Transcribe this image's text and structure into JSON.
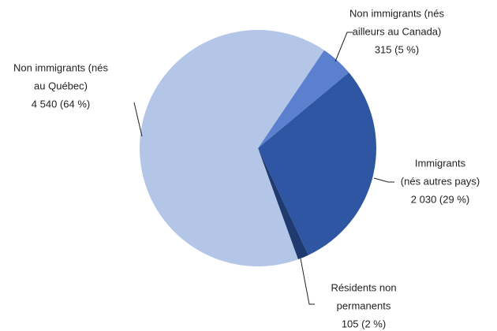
{
  "chart_data": {
    "type": "pie",
    "categories": [
      [
        "Non immigrants (nés",
        "ailleurs au Canada)"
      ],
      [
        "Immigrants",
        "(nés autres pays)"
      ],
      [
        "Résidents non",
        "permanents"
      ],
      [
        "Non immigrants (nés",
        "au Québec)"
      ]
    ],
    "values": [
      315,
      2030,
      105,
      4540
    ],
    "value_labels": [
      "315 (5 %)",
      "2 030 (29 %)",
      "105 (2 %)",
      "4 540 (64 %)"
    ],
    "colors": [
      "#5b80cd",
      "#2f56a3",
      "#1e3a6e",
      "#b4c6e7"
    ]
  }
}
